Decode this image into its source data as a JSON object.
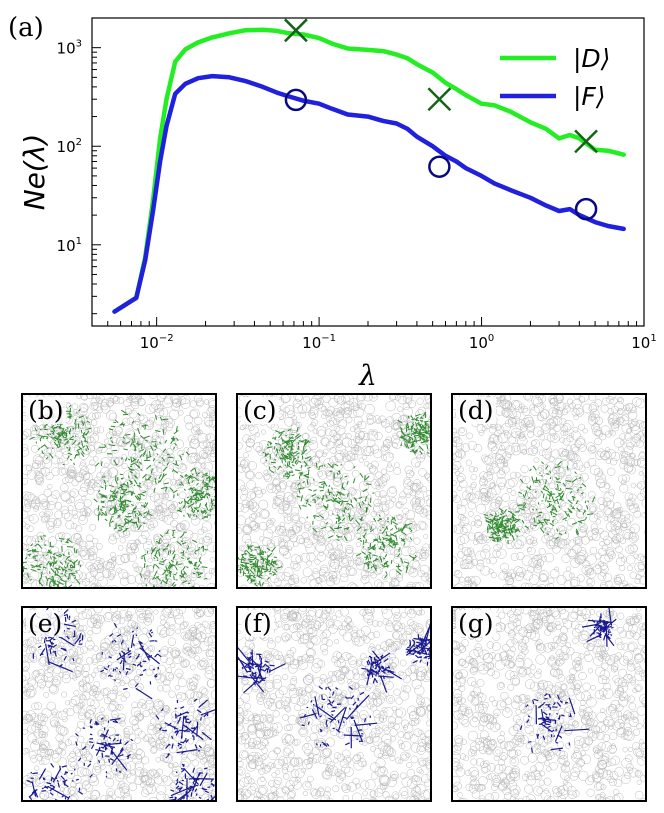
{
  "chart_data": {
    "type": "line",
    "panel_label": "(a)",
    "xlabel": "λ",
    "ylabel": "Ne(λ)",
    "xscale": "log",
    "yscale": "log",
    "xlim": [
      0.004,
      10
    ],
    "ylim": [
      1.5,
      2000
    ],
    "xticks": [
      {
        "value": 0.01,
        "base": "10",
        "exp": "−2"
      },
      {
        "value": 0.1,
        "base": "10",
        "exp": "−1"
      },
      {
        "value": 1,
        "base": "10",
        "exp": "0"
      },
      {
        "value": 10,
        "base": "10",
        "exp": "1"
      }
    ],
    "yticks": [
      {
        "value": 10,
        "base": "10",
        "exp": "1"
      },
      {
        "value": 100,
        "base": "10",
        "exp": "2"
      },
      {
        "value": 1000,
        "base": "10",
        "exp": "3"
      }
    ],
    "legend_position": "top-right",
    "series": [
      {
        "name": "|D⟩",
        "color": "#22ee22",
        "x": [
          0.0055,
          0.0075,
          0.0085,
          0.0095,
          0.0105,
          0.0115,
          0.013,
          0.015,
          0.018,
          0.022,
          0.028,
          0.035,
          0.045,
          0.055,
          0.065,
          0.08,
          0.1,
          0.12,
          0.15,
          0.2,
          0.25,
          0.3,
          0.35,
          0.4,
          0.5,
          0.6,
          0.7,
          0.8,
          1.0,
          1.2,
          1.5,
          2.0,
          2.5,
          3.0,
          3.5,
          4.0,
          5.0,
          6.0,
          7.5
        ],
        "y": [
          2.1,
          2.9,
          7.5,
          28,
          120,
          300,
          720,
          960,
          1130,
          1270,
          1400,
          1500,
          1520,
          1480,
          1400,
          1360,
          1250,
          1100,
          980,
          950,
          920,
          850,
          780,
          680,
          560,
          440,
          380,
          330,
          270,
          260,
          225,
          175,
          150,
          120,
          130,
          120,
          92,
          90,
          82
        ]
      },
      {
        "name": "|F⟩",
        "color": "#2020dd",
        "x": [
          0.0055,
          0.0075,
          0.0085,
          0.0095,
          0.0105,
          0.0115,
          0.013,
          0.015,
          0.018,
          0.022,
          0.028,
          0.035,
          0.045,
          0.055,
          0.065,
          0.08,
          0.1,
          0.12,
          0.15,
          0.2,
          0.25,
          0.3,
          0.35,
          0.4,
          0.5,
          0.6,
          0.7,
          0.8,
          1.0,
          1.2,
          1.5,
          2.0,
          2.5,
          3.0,
          3.5,
          4.0,
          5.0,
          6.0,
          7.5
        ],
        "y": [
          2.1,
          2.9,
          7.0,
          22,
          70,
          160,
          340,
          430,
          490,
          515,
          500,
          460,
          400,
          350,
          320,
          290,
          270,
          240,
          210,
          200,
          180,
          170,
          150,
          125,
          100,
          80,
          70,
          60,
          50,
          42,
          36,
          30,
          25,
          22,
          23,
          20,
          17,
          15.5,
          14.5
        ]
      }
    ],
    "markers": [
      {
        "series": "|D⟩",
        "shape": "x",
        "color": "#156315",
        "points": [
          {
            "x": 0.072,
            "y": 1500
          },
          {
            "x": 0.55,
            "y": 300
          },
          {
            "x": 4.4,
            "y": 112
          }
        ]
      },
      {
        "series": "|F⟩",
        "shape": "circle",
        "color": "#0a0a80",
        "points": [
          {
            "x": 0.072,
            "y": 295
          },
          {
            "x": 0.55,
            "y": 62
          },
          {
            "x": 4.4,
            "y": 23
          }
        ]
      }
    ]
  },
  "panels": [
    {
      "label": "(b)",
      "color": "#2e8b2e",
      "pattern": "spread-green"
    },
    {
      "label": "(c)",
      "color": "#2e8b2e",
      "pattern": "medium-green"
    },
    {
      "label": "(d)",
      "color": "#2e8b2e",
      "pattern": "localized-green"
    },
    {
      "label": "(e)",
      "color": "#1a1a90",
      "pattern": "spread-blue"
    },
    {
      "label": "(f)",
      "color": "#1a1a90",
      "pattern": "medium-blue"
    },
    {
      "label": "(g)",
      "color": "#1a1a90",
      "pattern": "localized-blue"
    }
  ]
}
